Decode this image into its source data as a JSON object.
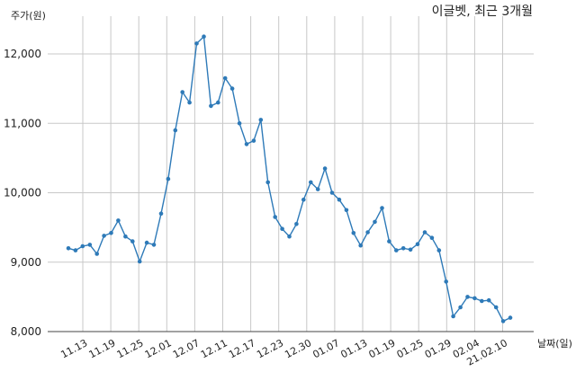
{
  "chart_data": {
    "type": "line",
    "title": "이글벳, 최근 3개월",
    "ylabel": "주가(원)",
    "xlabel": "날짜(일)",
    "ylim": [
      8000,
      12500
    ],
    "yticks": [
      8000,
      9000,
      10000,
      11000,
      12000
    ],
    "ytick_labels": [
      "8,000",
      "9,000",
      "10,000",
      "11,000",
      "12,000"
    ],
    "xticks": [
      "11.13",
      "11.19",
      "11.25",
      "12.01",
      "12.07",
      "12.11",
      "12.17",
      "12.23",
      "12.30",
      "01.07",
      "01.13",
      "01.19",
      "01.25",
      "01.29",
      "02.04",
      "21.02.10"
    ],
    "grid": true,
    "line_color": "#2e7ab8",
    "series": [
      {
        "values": [
          9200,
          9170,
          9230,
          9250,
          9120,
          9380,
          9420,
          9600,
          9370,
          9300,
          9010,
          9280,
          9250,
          9700,
          10200,
          10900,
          11450,
          11300,
          12150,
          12250,
          11250,
          11300,
          11650,
          11500,
          11000,
          10700,
          10750,
          11050,
          10150,
          9650,
          9480,
          9370,
          9550,
          9900,
          10150,
          10050,
          10350,
          10000,
          9900,
          9750,
          9420,
          9240,
          9430,
          9580,
          9780,
          9300,
          9170,
          9200,
          9180,
          9260,
          9430,
          9350,
          9170,
          8720,
          8220,
          8350,
          8500,
          8480,
          8440,
          8450,
          8350,
          8150,
          8200
        ]
      }
    ]
  }
}
